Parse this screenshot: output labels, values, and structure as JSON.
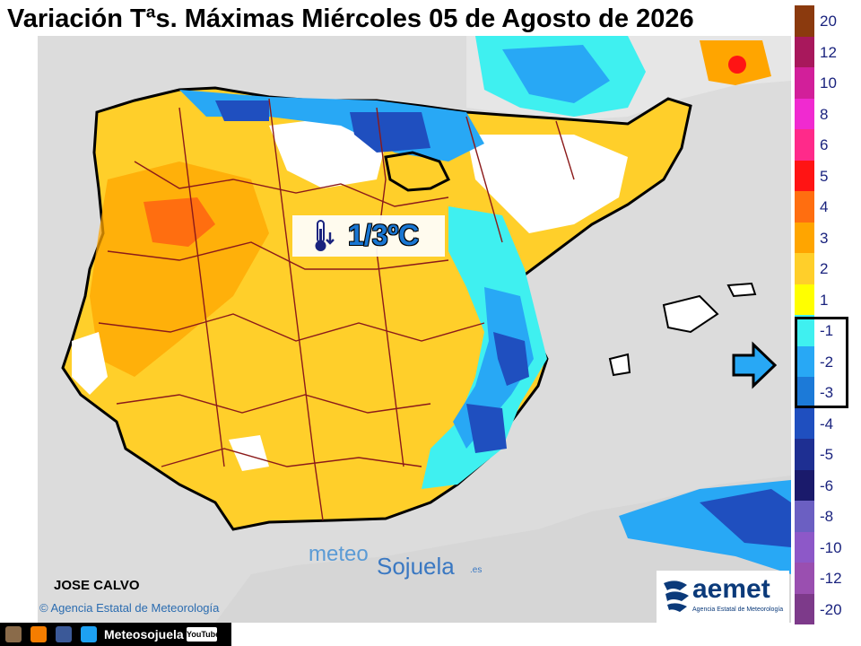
{
  "title": "Variación Tªs. Máximas Miércoles 05 de Agosto de 2026",
  "badge": {
    "text": "1/3ºC",
    "icon": "thermometer-down-icon"
  },
  "legend": {
    "items": [
      {
        "label": "20",
        "color": "#8b3a0e"
      },
      {
        "label": "12",
        "color": "#a8185c"
      },
      {
        "label": "10",
        "color": "#d21f9a"
      },
      {
        "label": "8",
        "color": "#f02ad0"
      },
      {
        "label": "6",
        "color": "#ff2a8a"
      },
      {
        "label": "5",
        "color": "#ff1414"
      },
      {
        "label": "4",
        "color": "#ff6e10"
      },
      {
        "label": "3",
        "color": "#ffa500"
      },
      {
        "label": "2",
        "color": "#ffcf2a"
      },
      {
        "label": "1",
        "color": "#ffff00"
      },
      {
        "label": "-1",
        "color": "#3ff0f0"
      },
      {
        "label": "-2",
        "color": "#28a8f5"
      },
      {
        "label": "-3",
        "color": "#1c7ad8"
      },
      {
        "label": "-4",
        "color": "#1f4fbf"
      },
      {
        "label": "-5",
        "color": "#1e2f92"
      },
      {
        "label": "-6",
        "color": "#1a1a6b"
      },
      {
        "label": "-8",
        "color": "#6b5fc2"
      },
      {
        "label": "-10",
        "color": "#8d58c8"
      },
      {
        "label": "-12",
        "color": "#9a4fb0"
      },
      {
        "label": "-20",
        "color": "#7d3a8a"
      }
    ]
  },
  "author": "JOSE CALVO",
  "agency_credit": "© Agencia Estatal de Meteorología",
  "watermark": {
    "part1": "meteo",
    "part2": "Sojuela",
    "part3": ".es"
  },
  "aemet": {
    "word": "aemet",
    "sub": "Agencia Estatal de Meteorología"
  },
  "footer": {
    "name": "Meteosojuela",
    "youtube": "YouTube"
  },
  "colors": {
    "sea": "#dcdcdc",
    "land_warm": "#ffcf2a",
    "land_hot": "#ffa500",
    "cool": "#3ff0f0",
    "cooler": "#28a8f5",
    "coldest": "#1f4fbf",
    "africa": "#d6d6d6"
  }
}
